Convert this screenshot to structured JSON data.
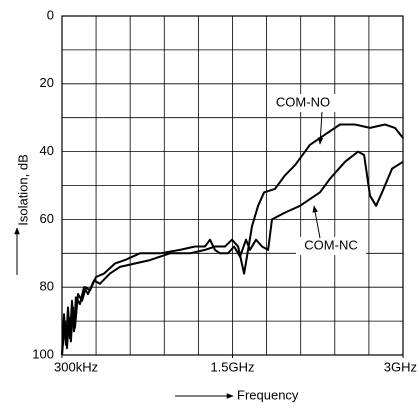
{
  "chart_data": {
    "type": "line",
    "ylabel": "Isolation, dB",
    "xlabel": "Frequency",
    "xlim": [
      0.3,
      3000
    ],
    "ylim": [
      0,
      100
    ],
    "y_inverted": true,
    "xticks": [
      {
        "value": 0.3,
        "label": "300kHz"
      },
      {
        "value": 1500,
        "label": "1.5GHz"
      },
      {
        "value": 3000,
        "label": "3GHz"
      }
    ],
    "yticks": [
      0,
      20,
      40,
      60,
      80,
      100
    ],
    "grid": true,
    "xgrid": [
      0.3,
      300,
      600,
      900,
      1200,
      1500,
      1800,
      2100,
      2400,
      2700,
      3000
    ],
    "ygrid": [
      0,
      10,
      20,
      30,
      40,
      50,
      60,
      70,
      80,
      90,
      100
    ],
    "series": [
      {
        "name": "COM-NO",
        "color": "#000000",
        "x": [
          0.3,
          18,
          35,
          53,
          70,
          88,
          106,
          123,
          158,
          194,
          229,
          282,
          334,
          422,
          510,
          642,
          774,
          950,
          1126,
          1258,
          1346,
          1434,
          1496,
          1549,
          1602,
          1637,
          1672,
          1725,
          1778,
          1874,
          1962,
          2050,
          2182,
          2314,
          2446,
          2578,
          2710,
          2842,
          2930,
          3000
        ],
        "values": [
          100,
          88,
          97,
          86,
          95,
          84,
          93,
          83,
          85,
          80,
          82,
          78,
          79,
          76,
          74,
          73,
          72,
          70,
          70,
          69,
          68,
          68,
          66,
          68,
          76,
          69,
          62,
          56,
          52,
          51,
          47,
          44,
          38,
          35,
          32,
          32,
          33,
          32,
          33,
          36
        ]
      },
      {
        "name": "COM-NC",
        "color": "#000000",
        "x": [
          0.3,
          26,
          44,
          62,
          79,
          97,
          114,
          141,
          176,
          211,
          246,
          299,
          370,
          466,
          554,
          686,
          862,
          1038,
          1170,
          1258,
          1302,
          1346,
          1390,
          1461,
          1514,
          1566,
          1619,
          1654,
          1707,
          1760,
          1813,
          1848,
          1962,
          2094,
          2182,
          2270,
          2358,
          2490,
          2605,
          2658,
          2710,
          2763,
          2816,
          2904,
          3000
        ],
        "values": [
          100,
          90,
          98,
          89,
          96,
          86,
          92,
          82,
          84,
          80,
          81,
          77,
          76,
          73,
          72,
          70,
          70,
          69,
          68,
          68,
          66,
          69,
          70,
          70,
          68,
          71,
          66,
          69,
          66,
          68,
          69,
          60,
          58,
          56,
          54,
          52,
          48,
          43,
          40,
          41,
          53,
          56,
          52,
          45,
          43
        ]
      }
    ]
  }
}
